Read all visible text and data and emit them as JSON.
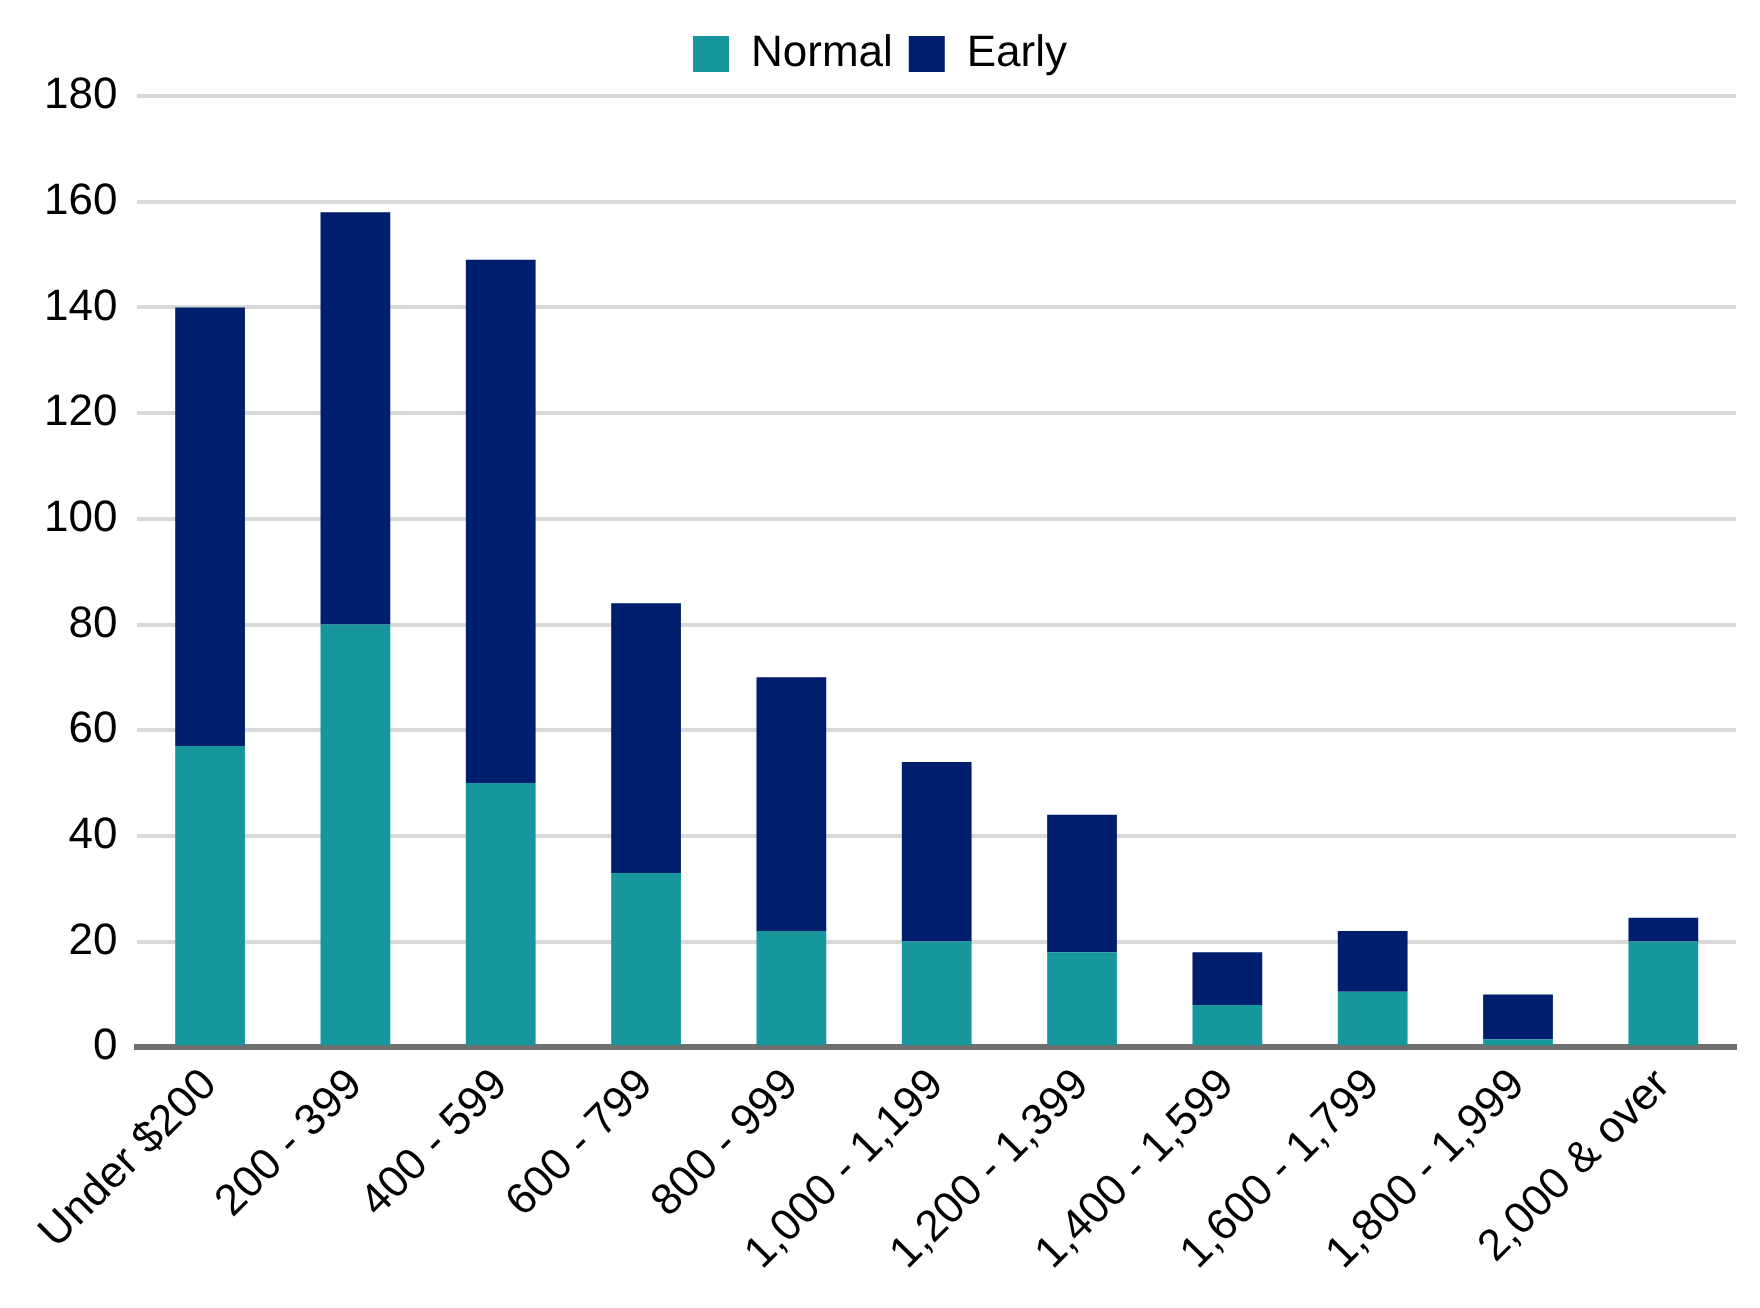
{
  "chart_data": {
    "type": "bar",
    "stacked": true,
    "categories": [
      "Under $200",
      "200 - 399",
      "400 - 599",
      "600 - 799",
      "800 - 999",
      "1,000 - 1,199",
      "1,200 - 1,399",
      "1,400 - 1,599",
      "1,600 - 1,799",
      "1,800 - 1,999",
      "2,000 & over"
    ],
    "series": [
      {
        "name": "Normal",
        "color": "#17979d",
        "values": [
          57,
          80,
          50,
          33,
          22,
          20,
          18,
          8,
          10.5,
          1.5,
          20
        ]
      },
      {
        "name": "Early",
        "color": "#001e6e",
        "values": [
          83,
          78,
          99,
          51,
          48,
          34,
          26,
          10,
          11.5,
          8.5,
          4.5
        ]
      }
    ],
    "ylim": [
      0,
      180
    ],
    "yticks": [
      0,
      20,
      40,
      60,
      80,
      100,
      120,
      140,
      160,
      180
    ],
    "grid": "y",
    "legend": "top"
  }
}
